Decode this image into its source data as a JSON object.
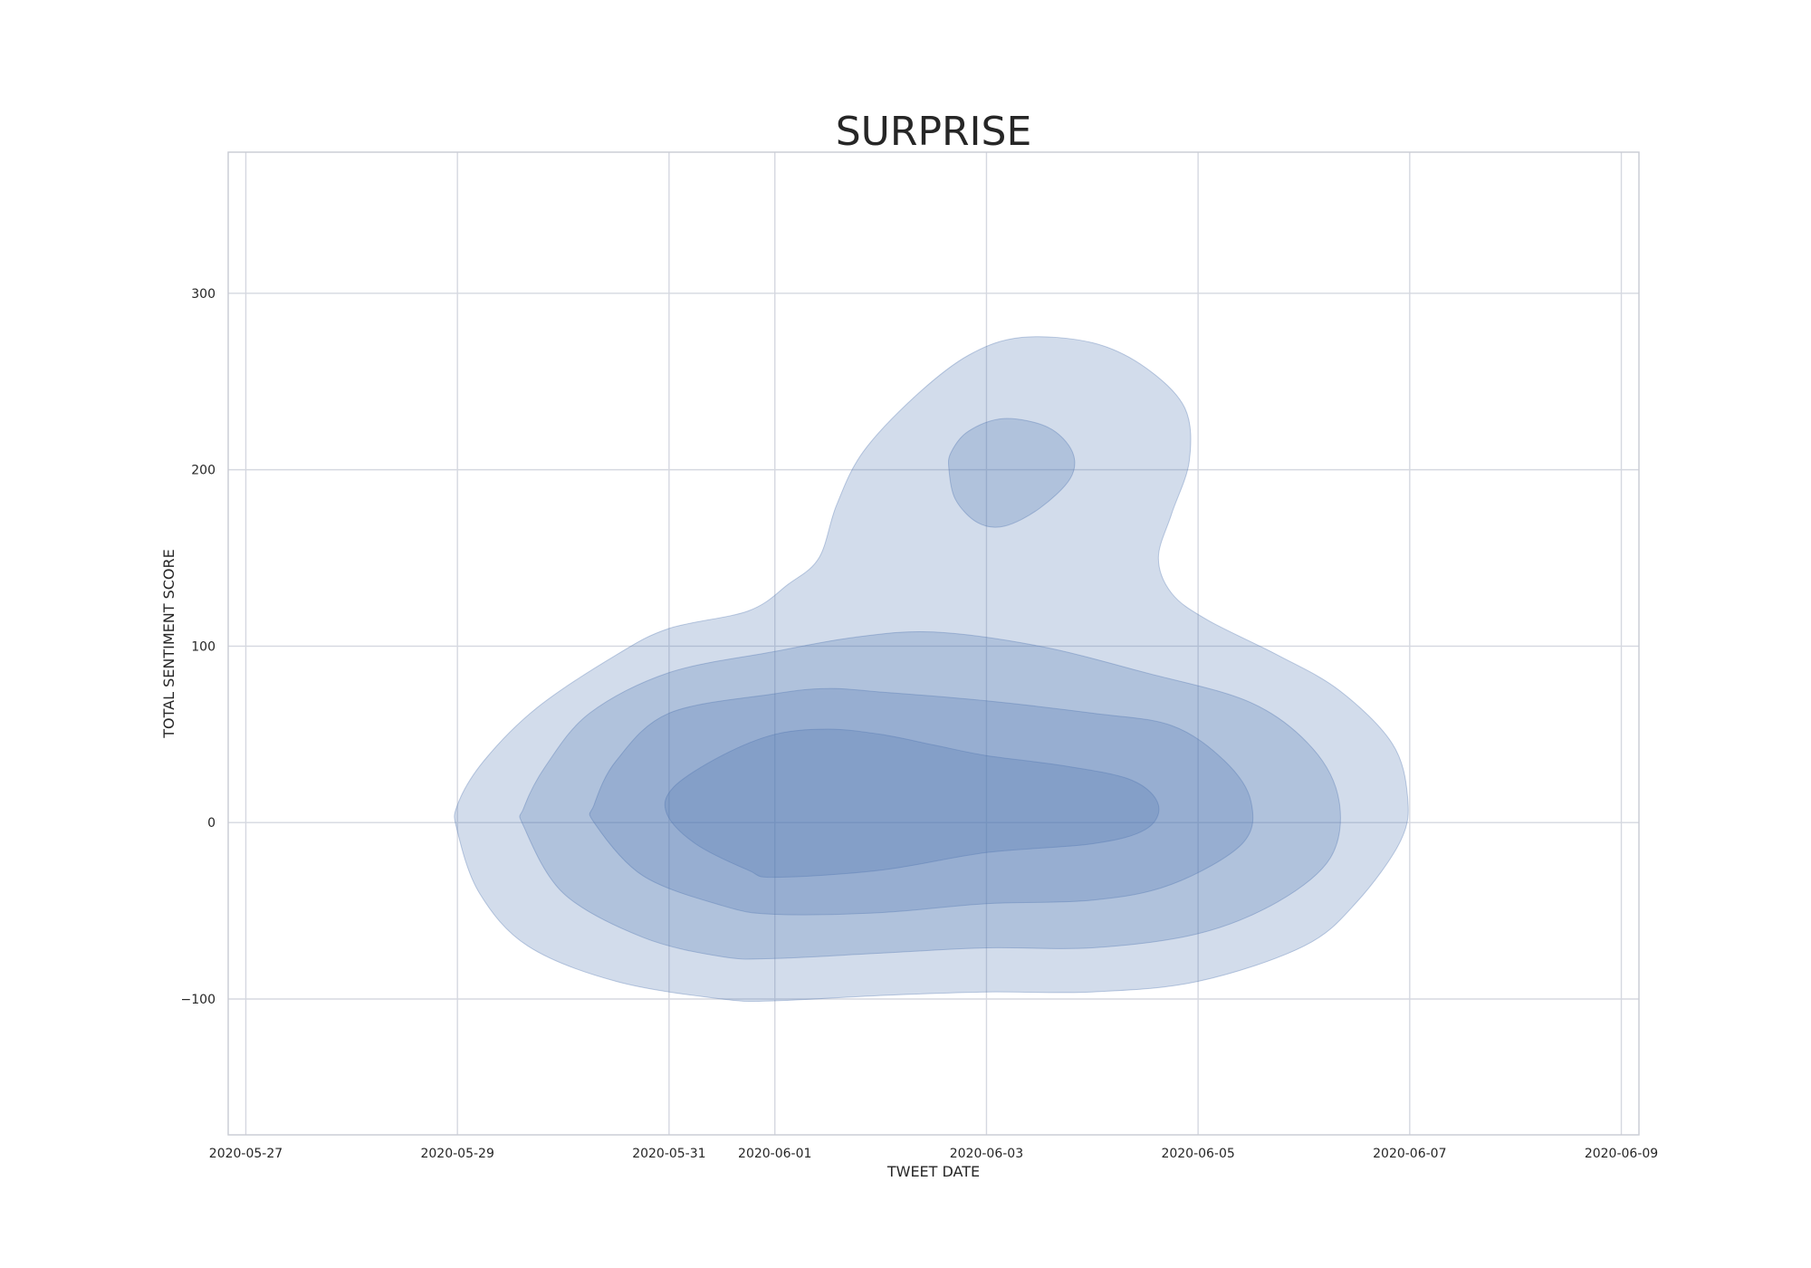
{
  "chart_data": {
    "type": "kde_contour",
    "title": "SURPRISE",
    "xlabel": "TWEET DATE",
    "ylabel": "TOTAL SENTIMENT SCORE",
    "xlim": [
      "2020-05-26 20:00",
      "2020-06-09 04:00"
    ],
    "ylim": [
      -177,
      380
    ],
    "x_ticks": [
      "2020-05-27",
      "2020-05-29",
      "2020-05-31",
      "2020-06-01",
      "2020-06-03",
      "2020-06-05",
      "2020-06-07",
      "2020-06-09"
    ],
    "y_ticks": [
      -100,
      0,
      100,
      200,
      300
    ],
    "grid": true,
    "fill_color": "#4c72b0",
    "levels": [
      {
        "name": "level-1",
        "opacity": 0.25,
        "regions": [
          [
            [
              "2020-05-29 00:00",
              -5
            ],
            [
              "2020-05-29 05:00",
              -40
            ],
            [
              "2020-05-29 16:00",
              -70
            ],
            [
              "2020-05-30 12:00",
              -90
            ],
            [
              "2020-05-31 12:00",
              -100
            ],
            [
              "2020-06-01 00:00",
              -101
            ],
            [
              "2020-06-02 00:00",
              -98
            ],
            [
              "2020-06-03 00:00",
              -96
            ],
            [
              "2020-06-04 00:00",
              -96
            ],
            [
              "2020-06-05 00:00",
              -90
            ],
            [
              "2020-06-06 00:00",
              -70
            ],
            [
              "2020-06-06 12:00",
              -45
            ],
            [
              "2020-06-06 22:00",
              -10
            ],
            [
              "2020-06-06 23:30",
              15
            ],
            [
              "2020-06-06 20:00",
              45
            ],
            [
              "2020-06-06 08:00",
              75
            ],
            [
              "2020-06-05 18:00",
              95
            ],
            [
              "2020-06-05 02:00",
              115
            ],
            [
              "2020-06-04 18:00",
              130
            ],
            [
              "2020-06-04 15:00",
              150
            ],
            [
              "2020-06-04 18:00",
              175
            ],
            [
              "2020-06-04 22:00",
              205
            ],
            [
              "2020-06-04 21:00",
              235
            ],
            [
              "2020-06-04 12:00",
              258
            ],
            [
              "2020-06-04 00:00",
              272
            ],
            [
              "2020-06-03 08:00",
              275
            ],
            [
              "2020-06-02 20:00",
              265
            ],
            [
              "2020-06-02 08:00",
              242
            ],
            [
              "2020-06-01 20:00",
              210
            ],
            [
              "2020-06-01 14:00",
              180
            ],
            [
              "2020-06-01 10:00",
              150
            ],
            [
              "2020-06-01 03:00",
              135
            ],
            [
              "2020-05-31 18:00",
              120
            ],
            [
              "2020-05-31 00:00",
              110
            ],
            [
              "2020-05-30 12:00",
              95
            ],
            [
              "2020-05-29 18:00",
              65
            ],
            [
              "2020-05-29 06:00",
              35
            ],
            [
              "2020-05-29 00:00",
              10
            ]
          ]
        ]
      },
      {
        "name": "level-2",
        "opacity": 0.25,
        "regions": [
          [
            [
              "2020-05-29 15:00",
              -2
            ],
            [
              "2020-05-30 00:00",
              -40
            ],
            [
              "2020-05-30 18:00",
              -65
            ],
            [
              "2020-05-31 12:00",
              -76
            ],
            [
              "2020-06-01 00:00",
              -77
            ],
            [
              "2020-06-02 00:00",
              -74
            ],
            [
              "2020-06-03 00:00",
              -71
            ],
            [
              "2020-06-04 00:00",
              -71
            ],
            [
              "2020-06-05 00:00",
              -63
            ],
            [
              "2020-06-05 18:00",
              -45
            ],
            [
              "2020-06-06 06:00",
              -20
            ],
            [
              "2020-06-06 08:00",
              12
            ],
            [
              "2020-06-06 02:00",
              42
            ],
            [
              "2020-06-05 12:00",
              68
            ],
            [
              "2020-06-04 12:00",
              85
            ],
            [
              "2020-06-03 12:00",
              100
            ],
            [
              "2020-06-02 12:00",
              108
            ],
            [
              "2020-06-01 18:00",
              105
            ],
            [
              "2020-06-01 00:00",
              97
            ],
            [
              "2020-05-31 00:00",
              85
            ],
            [
              "2020-05-30 06:00",
              62
            ],
            [
              "2020-05-29 20:00",
              32
            ],
            [
              "2020-05-29 15:00",
              8
            ]
          ],
          [
            [
              "2020-06-02 15:30",
              200
            ],
            [
              "2020-06-02 17:00",
              183
            ],
            [
              "2020-06-02 22:00",
              170
            ],
            [
              "2020-06-03 04:00",
              168
            ],
            [
              "2020-06-03 12:00",
              178
            ],
            [
              "2020-06-03 19:00",
              195
            ],
            [
              "2020-06-03 19:30",
              210
            ],
            [
              "2020-06-03 14:00",
              224
            ],
            [
              "2020-06-03 04:00",
              229
            ],
            [
              "2020-06-02 20:00",
              222
            ],
            [
              "2020-06-02 16:00",
              210
            ]
          ]
        ]
      },
      {
        "name": "level-3",
        "opacity": 0.25,
        "regions": [
          [
            [
              "2020-05-30 07:00",
              0
            ],
            [
              "2020-05-30 18:00",
              -30
            ],
            [
              "2020-05-31 12:00",
              -47
            ],
            [
              "2020-06-01 00:00",
              -52
            ],
            [
              "2020-06-02 00:00",
              -51
            ],
            [
              "2020-06-03 00:00",
              -46
            ],
            [
              "2020-06-04 00:00",
              -44
            ],
            [
              "2020-06-04 18:00",
              -35
            ],
            [
              "2020-06-05 10:00",
              -12
            ],
            [
              "2020-06-05 12:00",
              12
            ],
            [
              "2020-06-05 06:00",
              35
            ],
            [
              "2020-06-04 18:00",
              55
            ],
            [
              "2020-06-04 00:00",
              62
            ],
            [
              "2020-06-03 00:00",
              69
            ],
            [
              "2020-06-02 00:00",
              74
            ],
            [
              "2020-06-01 12:00",
              76
            ],
            [
              "2020-06-01 00:00",
              73
            ],
            [
              "2020-05-31 00:00",
              62
            ],
            [
              "2020-05-30 12:00",
              35
            ],
            [
              "2020-05-30 07:00",
              10
            ]
          ]
        ]
      },
      {
        "name": "level-4",
        "opacity": 0.25,
        "regions": [
          [
            [
              "2020-05-30 23:30",
              5
            ],
            [
              "2020-05-31 06:00",
              -12
            ],
            [
              "2020-05-31 18:00",
              -27
            ],
            [
              "2020-06-01 00:00",
              -31
            ],
            [
              "2020-06-02 00:00",
              -27
            ],
            [
              "2020-06-03 00:00",
              -17
            ],
            [
              "2020-06-04 00:00",
              -12
            ],
            [
              "2020-06-04 12:00",
              -4
            ],
            [
              "2020-06-04 15:00",
              10
            ],
            [
              "2020-06-04 09:00",
              24
            ],
            [
              "2020-06-03 18:00",
              32
            ],
            [
              "2020-06-03 00:00",
              38
            ],
            [
              "2020-06-02 12:00",
              44
            ],
            [
              "2020-06-02 00:00",
              50
            ],
            [
              "2020-06-01 12:00",
              53
            ],
            [
              "2020-06-01 00:00",
              50
            ],
            [
              "2020-05-31 12:00",
              38
            ],
            [
              "2020-05-31 01:00",
              20
            ]
          ]
        ]
      }
    ]
  }
}
